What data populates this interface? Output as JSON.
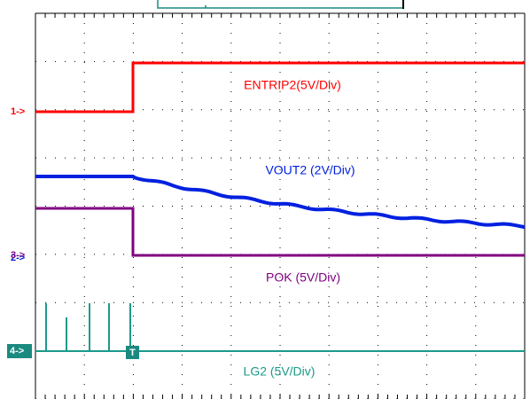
{
  "channels": [
    {
      "marker": "1->",
      "label": "ENTRIP2(5V/Div)"
    },
    {
      "marker": "2->",
      "label": "VOUT2 (2V/Div)"
    },
    {
      "marker": "3->",
      "label": "POK (5V/Div)"
    },
    {
      "marker": "4->",
      "label": "LG2 (5V/Div)"
    }
  ],
  "trigger": "T"
}
